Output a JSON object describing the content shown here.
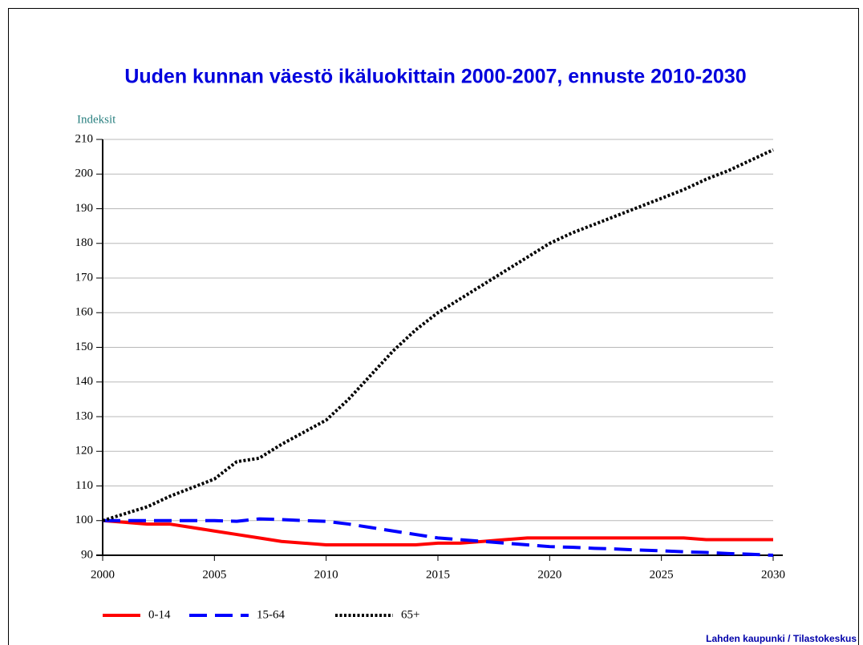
{
  "chart_data": {
    "type": "line",
    "title": "Uuden kunnan väestö ikäluokittain 2000-2007, ennuste 2010-2030",
    "y_label": "Indeksit",
    "source": "Lahden kaupunki / Tilastokeskus",
    "x": [
      2000,
      2001,
      2002,
      2003,
      2004,
      2005,
      2006,
      2007,
      2008,
      2009,
      2010,
      2011,
      2012,
      2013,
      2014,
      2015,
      2016,
      2017,
      2018,
      2019,
      2020,
      2021,
      2022,
      2023,
      2024,
      2025,
      2026,
      2027,
      2028,
      2029,
      2030
    ],
    "series": [
      {
        "name": "0-14",
        "color": "#ff0000",
        "style": "solid",
        "values": [
          100,
          99.5,
          99,
          99,
          98,
          97,
          96,
          95,
          94,
          93.5,
          93,
          93,
          93,
          93,
          93,
          93.5,
          93.5,
          94,
          94.5,
          95,
          95,
          95,
          95,
          95,
          95,
          95,
          95,
          94.5,
          94.5,
          94.5,
          94.5
        ]
      },
      {
        "name": "15-64",
        "color": "#0000ff",
        "style": "dashed",
        "values": [
          100,
          100,
          100,
          100,
          100,
          100,
          99.8,
          100.5,
          100.3,
          100,
          99.8,
          99,
          98,
          97,
          96,
          95,
          94.5,
          94,
          93.5,
          93,
          92.5,
          92.3,
          92,
          91.8,
          91.5,
          91.3,
          91,
          90.8,
          90.5,
          90.3,
          90
        ]
      },
      {
        "name": "65+",
        "color": "#000000",
        "style": "dotted",
        "values": [
          100,
          102,
          104,
          107,
          109.5,
          112,
          117,
          118,
          122,
          125.5,
          129,
          135,
          142,
          149,
          155,
          160,
          164,
          168,
          172,
          176,
          180,
          183,
          185.5,
          188,
          190.5,
          193,
          195.5,
          198.5,
          201,
          204,
          207
        ]
      }
    ],
    "xlim": [
      2000,
      2030
    ],
    "xticks": [
      2000,
      2005,
      2010,
      2015,
      2020,
      2025,
      2030
    ],
    "ylim": [
      90,
      210
    ],
    "yticks": [
      90,
      100,
      110,
      120,
      130,
      140,
      150,
      160,
      170,
      180,
      190,
      200,
      210
    ],
    "grid": true
  }
}
